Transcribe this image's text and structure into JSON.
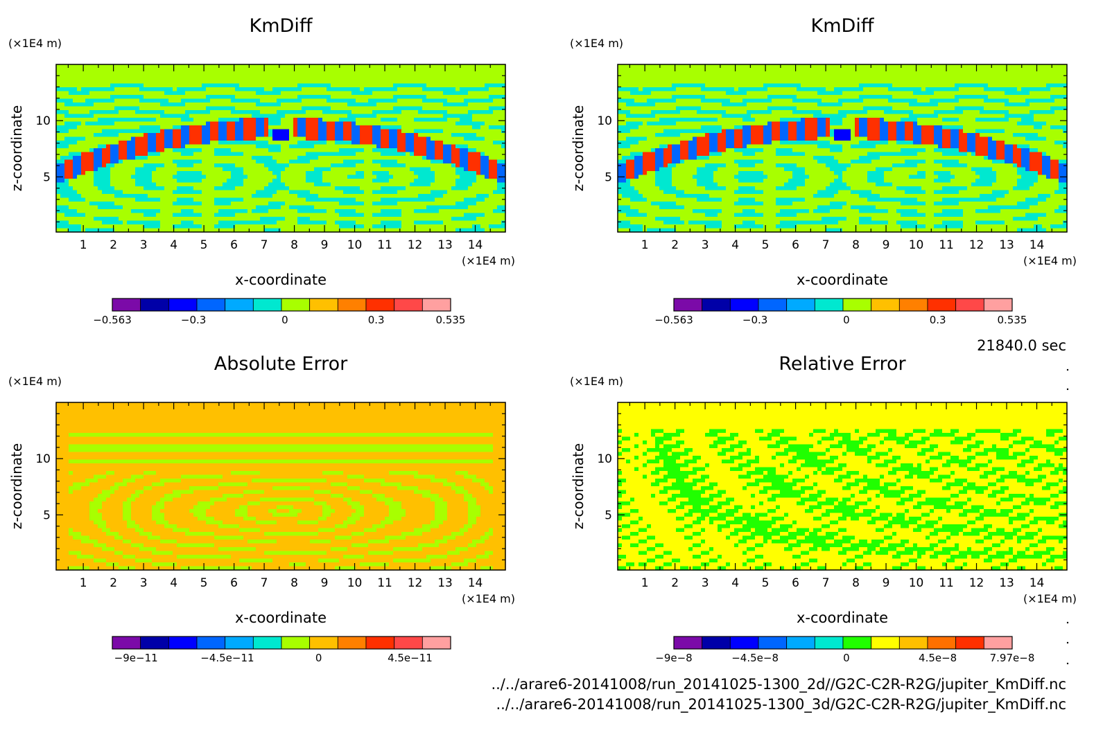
{
  "time_label": "21840.0 sec",
  "file_paths": [
    "../../arare6-20141008/run_20141025-1300_2d//G2C-C2R-R2G/jupiter_KmDiff.nc",
    "../../arare6-20141008/run_20141025-1300_3d/G2C-C2R-R2G/jupiter_KmDiff.nc"
  ],
  "chart_data": [
    {
      "type": "heatmap",
      "title": "KmDiff",
      "xlabel": "x-coordinate",
      "ylabel": "z-coordinate",
      "x_unit": "(×1E4 m)",
      "y_unit": "(×1E4 m)",
      "xlim": [
        0.1,
        15.0
      ],
      "ylim": [
        0.1,
        15.0
      ],
      "x_ticks": [
        "1",
        "2",
        "3",
        "4",
        "5",
        "6",
        "7",
        "8",
        "9",
        "10",
        "11",
        "12",
        "13",
        "14"
      ],
      "y_ticks": [
        "5",
        "10"
      ],
      "colorbar": {
        "colors": [
          "#7b0aa8",
          "#0000a8",
          "#0000ff",
          "#0066ff",
          "#00aaff",
          "#00e8d0",
          "#a8ff00",
          "#ffc000",
          "#ff8000",
          "#ff3000",
          "#ff4848",
          "#ffa0a0"
        ],
        "labels": [
          "−0.563",
          "−0.3",
          "0",
          "0.3",
          "0.535"
        ]
      },
      "pattern": "kmdiff"
    },
    {
      "type": "heatmap",
      "title": "KmDiff",
      "xlabel": "x-coordinate",
      "ylabel": "z-coordinate",
      "x_unit": "(×1E4 m)",
      "y_unit": "(×1E4 m)",
      "xlim": [
        0.1,
        15.0
      ],
      "ylim": [
        0.1,
        15.0
      ],
      "x_ticks": [
        "1",
        "2",
        "3",
        "4",
        "5",
        "6",
        "7",
        "8",
        "9",
        "10",
        "11",
        "12",
        "13",
        "14"
      ],
      "y_ticks": [
        "5",
        "10"
      ],
      "colorbar": {
        "colors": [
          "#7b0aa8",
          "#0000a8",
          "#0000ff",
          "#0066ff",
          "#00aaff",
          "#00e8d0",
          "#a8ff00",
          "#ffc000",
          "#ff8000",
          "#ff3000",
          "#ff4848",
          "#ffa0a0"
        ],
        "labels": [
          "−0.563",
          "−0.3",
          "0",
          "0.3",
          "0.535"
        ]
      },
      "pattern": "kmdiff"
    },
    {
      "type": "heatmap",
      "title": "Absolute Error",
      "xlabel": "x-coordinate",
      "ylabel": "z-coordinate",
      "x_unit": "(×1E4 m)",
      "y_unit": "(×1E4 m)",
      "xlim": [
        0.1,
        15.0
      ],
      "ylim": [
        0.1,
        15.0
      ],
      "x_ticks": [
        "1",
        "2",
        "3",
        "4",
        "5",
        "6",
        "7",
        "8",
        "9",
        "10",
        "11",
        "12",
        "13",
        "14"
      ],
      "y_ticks": [
        "5",
        "10"
      ],
      "colorbar": {
        "colors": [
          "#7b0aa8",
          "#0000a8",
          "#0000ff",
          "#0066ff",
          "#00aaff",
          "#00e8d0",
          "#a8ff00",
          "#ffc000",
          "#ff8000",
          "#ff3000",
          "#ff4848",
          "#ffa0a0"
        ],
        "labels": [
          "−9e−11",
          "−4.5e−11",
          "0",
          "4.5e−11"
        ]
      },
      "pattern": "abs"
    },
    {
      "type": "heatmap",
      "title": "Relative Error",
      "xlabel": "x-coordinate",
      "ylabel": "z-coordinate",
      "x_unit": "(×1E4 m)",
      "y_unit": "(×1E4 m)",
      "xlim": [
        0.1,
        15.0
      ],
      "ylim": [
        0.1,
        15.0
      ],
      "x_ticks": [
        "1",
        "2",
        "3",
        "4",
        "5",
        "6",
        "7",
        "8",
        "9",
        "10",
        "11",
        "12",
        "13",
        "14"
      ],
      "y_ticks": [
        "5",
        "10"
      ],
      "colorbar": {
        "colors": [
          "#7b0aa8",
          "#0000a8",
          "#0000ff",
          "#0066ff",
          "#00aaff",
          "#00e8d0",
          "#20ff00",
          "#ffff00",
          "#ffc000",
          "#ff7000",
          "#ff3000",
          "#ffa0a0"
        ],
        "labels": [
          "−9e−8",
          "−4.5e−8",
          "0",
          "4.5e−8",
          "7.97e−8"
        ]
      },
      "pattern": "rel"
    }
  ]
}
